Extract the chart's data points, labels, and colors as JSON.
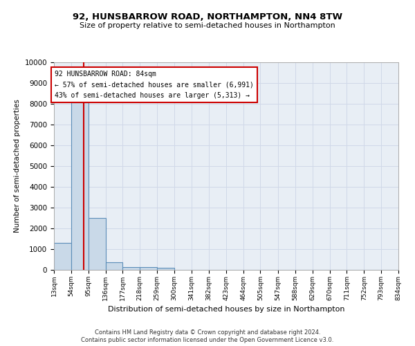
{
  "title1": "92, HUNSBARROW ROAD, NORTHAMPTON, NN4 8TW",
  "title2": "Size of property relative to semi-detached houses in Northampton",
  "xlabel": "Distribution of semi-detached houses by size in Northampton",
  "ylabel": "Number of semi-detached properties",
  "footer1": "Contains HM Land Registry data © Crown copyright and database right 2024.",
  "footer2": "Contains public sector information licensed under the Open Government Licence v3.0.",
  "property_size": 84,
  "annotation_title": "92 HUNSBARROW ROAD: 84sqm",
  "annotation_line1": "← 57% of semi-detached houses are smaller (6,991)",
  "annotation_line2": "43% of semi-detached houses are larger (5,313) →",
  "bin_edges": [
    13,
    54,
    95,
    136,
    177,
    218,
    259,
    300,
    341,
    382,
    423,
    464,
    505,
    547,
    588,
    629,
    670,
    711,
    752,
    793,
    834
  ],
  "bar_heights": [
    1300,
    8050,
    2500,
    380,
    150,
    120,
    90,
    0,
    0,
    0,
    0,
    0,
    0,
    0,
    0,
    0,
    0,
    0,
    0,
    0
  ],
  "bar_color": "#c9d9e8",
  "bar_edge_color": "#5b8db8",
  "vline_color": "#cc0000",
  "vline_x": 84,
  "ylim": [
    0,
    10000
  ],
  "yticks": [
    0,
    1000,
    2000,
    3000,
    4000,
    5000,
    6000,
    7000,
    8000,
    9000,
    10000
  ],
  "annotation_box_color": "#cc0000",
  "annotation_box_fill": "#ffffff",
  "grid_color": "#d0d8e8",
  "background_color": "#e8eef5"
}
